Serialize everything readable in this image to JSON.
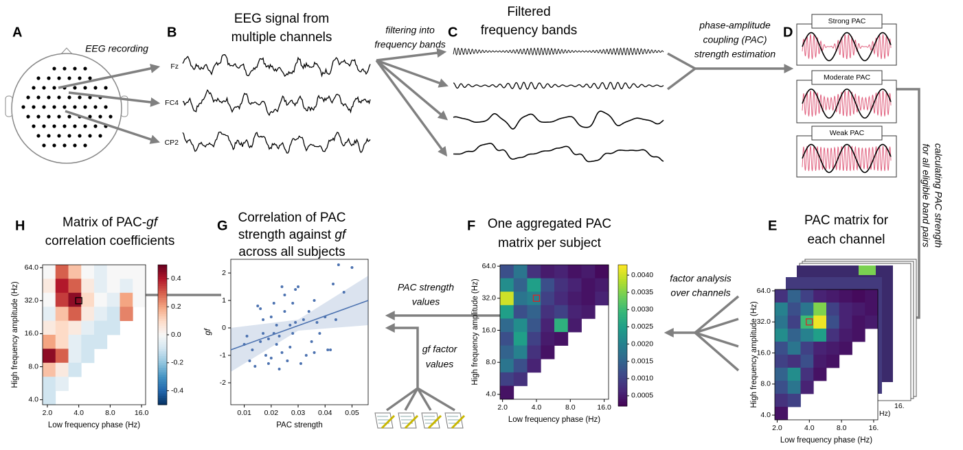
{
  "A": {
    "letter": "A",
    "caption": "EEG recording"
  },
  "B": {
    "letter": "B",
    "title": [
      "EEG signal from",
      "multiple channels"
    ],
    "channels": [
      "Fz",
      "FC4",
      "CP2"
    ]
  },
  "filtering": [
    "filtering into",
    "frequency bands"
  ],
  "C": {
    "letter": "C",
    "title": [
      "Filtered",
      "frequency bands"
    ]
  },
  "pac_estimation": [
    "phase-amplitude",
    "coupling (PAC)",
    "strength estimation"
  ],
  "D": {
    "letter": "D",
    "boxes": [
      "Strong PAC",
      "Moderate PAC",
      "Weak PAC"
    ]
  },
  "calculating": [
    "calculating PAC strength",
    "for all eligible band pairs"
  ],
  "E": {
    "letter": "E",
    "title": [
      "PAC matrix for",
      "each channel"
    ],
    "heatmap": {
      "xlabel": "Low frequency phase (Hz)",
      "ylabel": "High frequency amplitude (Hz)",
      "xlim": [
        1.9,
        17.5
      ],
      "ylim": [
        3.6,
        66
      ],
      "xticks": [
        {
          "value": 2,
          "label": "2.0"
        },
        {
          "value": 4,
          "label": "4.0"
        },
        {
          "value": 8,
          "label": "8.0"
        },
        {
          "value": 16,
          "label": "16."
        }
      ],
      "yticks": [
        {
          "value": 4,
          "label": "4.0"
        },
        {
          "value": 8,
          "label": "8.0"
        },
        {
          "value": 16,
          "label": "16.0"
        },
        {
          "value": 32,
          "label": "32.0"
        },
        {
          "value": 64,
          "label": "64.0"
        }
      ],
      "colormap": "viridis",
      "clim": [
        0.0002,
        0.0043
      ],
      "highlight": {
        "x": 4,
        "y": 32,
        "color": "#d62728"
      },
      "cells": [
        [
          0.0008,
          0.0015,
          0.001,
          0.0006,
          0.0005,
          0.0004,
          0.0003,
          0.0004
        ],
        [
          0.002,
          0.0012,
          0.0018,
          0.0035,
          0.001,
          0.0006,
          0.0005,
          0.0004
        ],
        [
          0.0018,
          0.001,
          0.003,
          0.0042,
          0.0012,
          0.0006,
          0.0004,
          0.0005
        ],
        [
          0.0022,
          0.0015,
          0.002,
          0.0025,
          0.0008,
          0.0005,
          0.0004,
          null
        ],
        [
          0.0012,
          0.0018,
          0.001,
          0.0006,
          0.0005,
          0.0004,
          null,
          null
        ],
        [
          0.001,
          0.0008,
          0.0012,
          0.0005,
          0.0004,
          null,
          null,
          null
        ],
        [
          0.0015,
          0.0022,
          0.0008,
          0.0004,
          null,
          null,
          null,
          null
        ],
        [
          0.0012,
          0.0018,
          0.0006,
          null,
          null,
          null,
          null,
          null
        ],
        [
          0.0008,
          0.001,
          null,
          null,
          null,
          null,
          null,
          null
        ],
        [
          0.0004,
          null,
          null,
          null,
          null,
          null,
          null,
          null
        ]
      ]
    },
    "back_labels": [
      "16.",
      "Hz)"
    ]
  },
  "factor_analysis": [
    "factor analysis",
    "over channels"
  ],
  "F": {
    "letter": "F",
    "title": [
      "One aggregated PAC",
      "matrix per subject"
    ],
    "heatmap": {
      "xlabel": "Low frequency phase (Hz)",
      "ylabel": "High frequency amplitude (Hz)",
      "xlim": [
        1.9,
        17.5
      ],
      "ylim": [
        3.6,
        66
      ],
      "xticks": [
        {
          "value": 2,
          "label": "2.0"
        },
        {
          "value": 4,
          "label": "4.0"
        },
        {
          "value": 8,
          "label": "8.0"
        },
        {
          "value": 16,
          "label": "16.0"
        }
      ],
      "yticks": [
        {
          "value": 4,
          "label": "4.0"
        },
        {
          "value": 8,
          "label": "8.0"
        },
        {
          "value": 16,
          "label": "16.0"
        },
        {
          "value": 32,
          "label": "32.0"
        },
        {
          "value": 64,
          "label": "64.0"
        }
      ],
      "colormap": "viridis",
      "clim": [
        0.0002,
        0.0043
      ],
      "colorbar_ticks": [
        0.0005,
        {
          "value": 0.001,
          "label": "0.0010"
        },
        0.0015,
        {
          "value": 0.002,
          "label": "0.0020"
        },
        0.0025,
        {
          "value": 0.003,
          "label": "0.0030"
        },
        0.0035,
        {
          "value": 0.004,
          "label": "0.0040"
        }
      ],
      "highlight": {
        "x": 4,
        "y": 32,
        "color": "#d62728"
      },
      "cells": [
        [
          0.0012,
          0.0018,
          0.0008,
          0.0005,
          0.0006,
          0.0004,
          0.0005,
          0.0003
        ],
        [
          0.0022,
          0.0015,
          0.0025,
          0.0012,
          0.0008,
          0.0006,
          0.0004,
          0.0005
        ],
        [
          0.004,
          0.0018,
          0.002,
          0.001,
          0.0007,
          0.0005,
          0.0004,
          0.0006
        ],
        [
          0.0025,
          0.0012,
          0.0015,
          0.0008,
          0.001,
          0.0006,
          0.0005,
          null
        ],
        [
          0.0016,
          0.0022,
          0.0013,
          0.0006,
          0.0028,
          0.0005,
          null,
          null
        ],
        [
          0.0012,
          0.0025,
          0.001,
          0.0005,
          0.0004,
          null,
          null,
          null
        ],
        [
          0.0015,
          0.002,
          0.0008,
          0.0004,
          null,
          null,
          null,
          null
        ],
        [
          0.0018,
          0.0012,
          0.0006,
          null,
          null,
          null,
          null,
          null
        ],
        [
          0.001,
          0.0008,
          null,
          null,
          null,
          null,
          null,
          null
        ],
        [
          0.0004,
          null,
          null,
          null,
          null,
          null,
          null,
          null
        ]
      ]
    }
  },
  "pac_values": [
    "PAC strength",
    "values"
  ],
  "gf_values": [
    "gf factor",
    "values"
  ],
  "G": {
    "letter": "G",
    "title": [
      "Correlation of PAC",
      [
        "strength against ",
        "gf"
      ],
      "across all subjects"
    ],
    "scatter": {
      "xlabel": "PAC strength",
      "ylabel": "gf",
      "xlim": [
        0.005,
        0.056
      ],
      "ylim": [
        -2.8,
        2.5
      ],
      "xticks": [
        0.01,
        0.02,
        0.03,
        0.04,
        0.05
      ],
      "yticks": [
        -2,
        -1,
        0,
        1,
        2
      ],
      "color": "#4c72b0",
      "points": {
        "x": [
          0.01,
          0.011,
          0.012,
          0.013,
          0.014,
          0.015,
          0.016,
          0.016,
          0.017,
          0.017,
          0.018,
          0.019,
          0.019,
          0.02,
          0.02,
          0.021,
          0.021,
          0.022,
          0.022,
          0.023,
          0.023,
          0.024,
          0.024,
          0.025,
          0.025,
          0.026,
          0.027,
          0.027,
          0.028,
          0.028,
          0.029,
          0.029,
          0.03,
          0.031,
          0.032,
          0.033,
          0.034,
          0.035,
          0.036,
          0.036,
          0.037,
          0.038,
          0.04,
          0.041,
          0.042,
          0.043,
          0.044,
          0.045,
          0.047,
          0.05
        ],
        "y": [
          -0.6,
          -0.3,
          -1.2,
          -0.8,
          -1.4,
          0.8,
          0.7,
          -0.5,
          -0.2,
          0.3,
          -1.0,
          -1.3,
          -0.4,
          0.4,
          -1.1,
          0.9,
          -0.2,
          -0.6,
          0.1,
          -1.5,
          -0.3,
          1.5,
          -0.9,
          0.6,
          1.2,
          -1.2,
          0.1,
          -0.7,
          0.9,
          -0.2,
          1.4,
          0.2,
          1.5,
          -1.3,
          0.3,
          -1.0,
          0.6,
          -0.5,
          1.0,
          -0.9,
          0.2,
          -0.2,
          0.4,
          -0.8,
          -0.8,
          1.6,
          0.3,
          2.3,
          1.3,
          2.2
        ]
      },
      "fit": {
        "x": [
          0.005,
          0.056
        ],
        "y": [
          -0.8,
          1.0
        ]
      },
      "band": {
        "x": [
          0.005,
          0.03,
          0.056
        ],
        "lower": [
          -1.6,
          -0.1,
          0.1
        ],
        "upper": [
          0.0,
          0.3,
          1.9
        ]
      }
    }
  },
  "H": {
    "letter": "H",
    "title": [
      [
        "Matrix of PAC-",
        "gf"
      ],
      "correlation coefficients"
    ],
    "heatmap": {
      "xlabel": "Low frequency phase (Hz)",
      "ylabel": "High frequency amplitude (Hz)",
      "xlim": [
        1.8,
        17.5
      ],
      "ylim": [
        3.6,
        68
      ],
      "xticks": [
        {
          "value": 2,
          "label": "2.0"
        },
        {
          "value": 4,
          "label": "4.0"
        },
        {
          "value": 8,
          "label": "8.0"
        },
        {
          "value": 16,
          "label": "16.0"
        }
      ],
      "yticks": [
        {
          "value": 4,
          "label": "4.0"
        },
        {
          "value": 8,
          "label": "8.0"
        },
        {
          "value": 16,
          "label": "16.0"
        },
        {
          "value": 32,
          "label": "32.0"
        },
        {
          "value": 64,
          "label": "64.0"
        }
      ],
      "colormap": "RdBu_r",
      "clim": [
        -0.5,
        0.5
      ],
      "colorbar_ticks": [
        0.4,
        0.2,
        {
          "value": 0,
          "label": "0.0"
        },
        -0.2,
        -0.4
      ],
      "highlight": {
        "x": 4,
        "y": 32,
        "color": "#000000"
      },
      "cells": [
        [
          0.0,
          0.3,
          0.15,
          0.0,
          -0.05,
          0.0,
          0.0,
          0.0
        ],
        [
          0.05,
          0.4,
          0.3,
          0.05,
          -0.05,
          0.0,
          -0.05,
          0.0
        ],
        [
          0.0,
          0.35,
          0.45,
          0.1,
          0.0,
          -0.05,
          0.2,
          0.0
        ],
        [
          -0.05,
          0.15,
          0.3,
          0.05,
          -0.05,
          -0.1,
          0.25,
          null
        ],
        [
          0.05,
          0.1,
          0.05,
          -0.05,
          -0.1,
          -0.1,
          null,
          null
        ],
        [
          0.2,
          0.1,
          -0.05,
          -0.1,
          -0.1,
          null,
          null,
          null
        ],
        [
          0.45,
          0.3,
          -0.05,
          -0.1,
          null,
          null,
          null,
          null
        ],
        [
          0.15,
          0.05,
          -0.1,
          null,
          null,
          null,
          null,
          null
        ],
        [
          -0.1,
          -0.05,
          null,
          null,
          null,
          null,
          null,
          null
        ],
        [
          -0.1,
          null,
          null,
          null,
          null,
          null,
          null,
          null
        ]
      ]
    }
  }
}
